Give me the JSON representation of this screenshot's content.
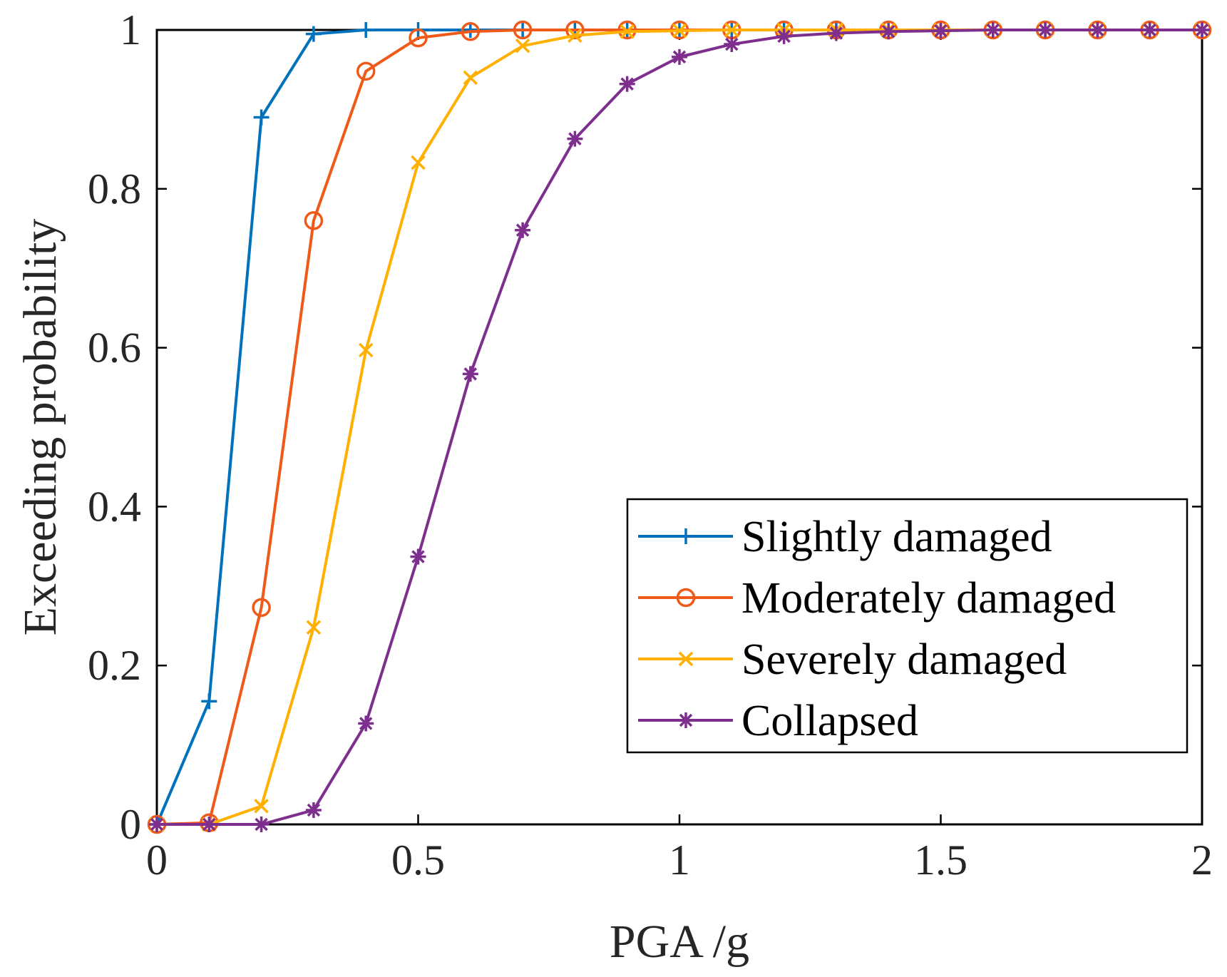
{
  "chart_data": {
    "type": "line",
    "title": "",
    "xlabel": "PGA /g",
    "ylabel": "Exceeding probability",
    "xlim": [
      0,
      2
    ],
    "ylim": [
      0,
      1
    ],
    "xticks": [
      0,
      0.5,
      1,
      1.5,
      2
    ],
    "xtick_labels": [
      "0",
      "0.5",
      "1",
      "1.5",
      "2"
    ],
    "yticks": [
      0,
      0.2,
      0.4,
      0.6,
      0.8,
      1
    ],
    "ytick_labels": [
      "0",
      "0.2",
      "0.4",
      "0.6",
      "0.8",
      "1"
    ],
    "grid": false,
    "legend_position": "bottom-right",
    "x": [
      0,
      0.1,
      0.2,
      0.3,
      0.4,
      0.5,
      0.6,
      0.7,
      0.8,
      0.9,
      1.0,
      1.1,
      1.2,
      1.3,
      1.4,
      1.5,
      1.6,
      1.7,
      1.8,
      1.9,
      2.0
    ],
    "series": [
      {
        "name": "Slightly damaged",
        "color": "#0072BD",
        "marker": "plus",
        "values": [
          0,
          0.155,
          0.89,
          0.995,
          1,
          1,
          1,
          1,
          1,
          1,
          1,
          1,
          1,
          1,
          1,
          1,
          1,
          1,
          1,
          1,
          1
        ]
      },
      {
        "name": "Moderately damaged",
        "color": "#F05A18",
        "marker": "circle",
        "values": [
          0,
          0.002,
          0.273,
          0.76,
          0.948,
          0.99,
          0.998,
          1,
          1,
          1,
          1,
          1,
          1,
          1,
          1,
          1,
          1,
          1,
          1,
          1,
          1
        ]
      },
      {
        "name": "Severely damaged",
        "color": "#FFB000",
        "marker": "x",
        "values": [
          0,
          0,
          0.023,
          0.248,
          0.597,
          0.833,
          0.94,
          0.98,
          0.993,
          0.998,
          0.999,
          1,
          1,
          1,
          1,
          1,
          1,
          1,
          1,
          1,
          1
        ]
      },
      {
        "name": "Collapsed",
        "color": "#7E2F8E",
        "marker": "asterisk",
        "values": [
          0,
          0,
          0,
          0.018,
          0.127,
          0.337,
          0.567,
          0.748,
          0.863,
          0.932,
          0.966,
          0.982,
          0.992,
          0.996,
          0.998,
          0.999,
          1,
          1,
          1,
          1,
          1
        ]
      }
    ]
  }
}
